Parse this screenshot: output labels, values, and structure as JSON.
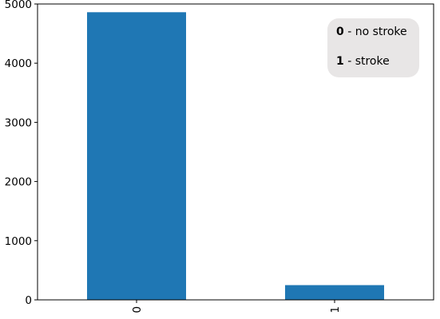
{
  "chart_data": {
    "type": "bar",
    "title": "",
    "xlabel": "",
    "ylabel": "",
    "categories": [
      "0",
      "1"
    ],
    "values": [
      4861,
      249
    ],
    "ylim": [
      0,
      5000
    ],
    "yticks": [
      0,
      1000,
      2000,
      3000,
      4000,
      5000
    ],
    "grid": false,
    "bar_color": "#1f77b4",
    "xtick_rotation": "vertical",
    "annotation": {
      "placement": "top-right",
      "background_color": "#e8e6e6",
      "entries": [
        {
          "key": "0",
          "text": " - no stroke"
        },
        {
          "key": "1",
          "text": " - stroke"
        }
      ]
    }
  }
}
